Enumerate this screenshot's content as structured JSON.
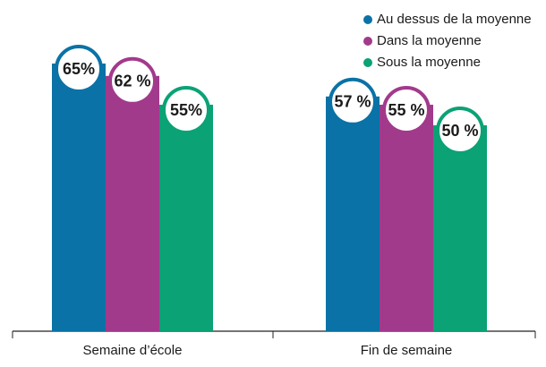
{
  "chart_data": {
    "type": "bar",
    "categories": [
      "Semaine d’école",
      "Fin de semaine"
    ],
    "series": [
      {
        "name": "Au dessus de la moyenne",
        "color": "#0a72a6",
        "values": [
          65,
          57
        ],
        "value_labels": [
          "65%",
          "57 %"
        ]
      },
      {
        "name": "Dans la moyenne",
        "color": "#a23a8c",
        "values": [
          62,
          55
        ],
        "value_labels": [
          "62 %",
          "55 %"
        ]
      },
      {
        "name": "Sous la moyenne",
        "color": "#0ba275",
        "values": [
          55,
          50
        ],
        "value_labels": [
          "55%",
          "50 %"
        ]
      }
    ],
    "legend": "top-right"
  }
}
